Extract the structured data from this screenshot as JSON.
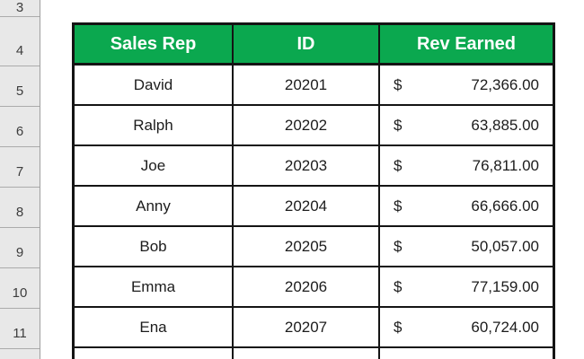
{
  "sheet": {
    "row_numbers": [
      "3",
      "4",
      "5",
      "6",
      "7",
      "8",
      "9",
      "10",
      "11",
      ""
    ]
  },
  "table": {
    "headers": [
      "Sales Rep",
      "ID",
      "Rev Earned"
    ],
    "rows": [
      {
        "name": "David",
        "id": "20201",
        "currency": "$",
        "amount": "72,366.00"
      },
      {
        "name": "Ralph",
        "id": "20202",
        "currency": "$",
        "amount": "63,885.00"
      },
      {
        "name": "Joe",
        "id": "20203",
        "currency": "$",
        "amount": "76,811.00"
      },
      {
        "name": "Anny",
        "id": "20204",
        "currency": "$",
        "amount": "66,666.00"
      },
      {
        "name": "Bob",
        "id": "20205",
        "currency": "$",
        "amount": "50,057.00"
      },
      {
        "name": "Emma",
        "id": "20206",
        "currency": "$",
        "amount": "77,159.00"
      },
      {
        "name": "Ena",
        "id": "20207",
        "currency": "$",
        "amount": "60,724.00"
      }
    ]
  },
  "colors": {
    "header_green": "#0ba84f",
    "header_text": "#ffffff",
    "table_border": "#141414",
    "gutter_bg": "#e8e8e8"
  }
}
